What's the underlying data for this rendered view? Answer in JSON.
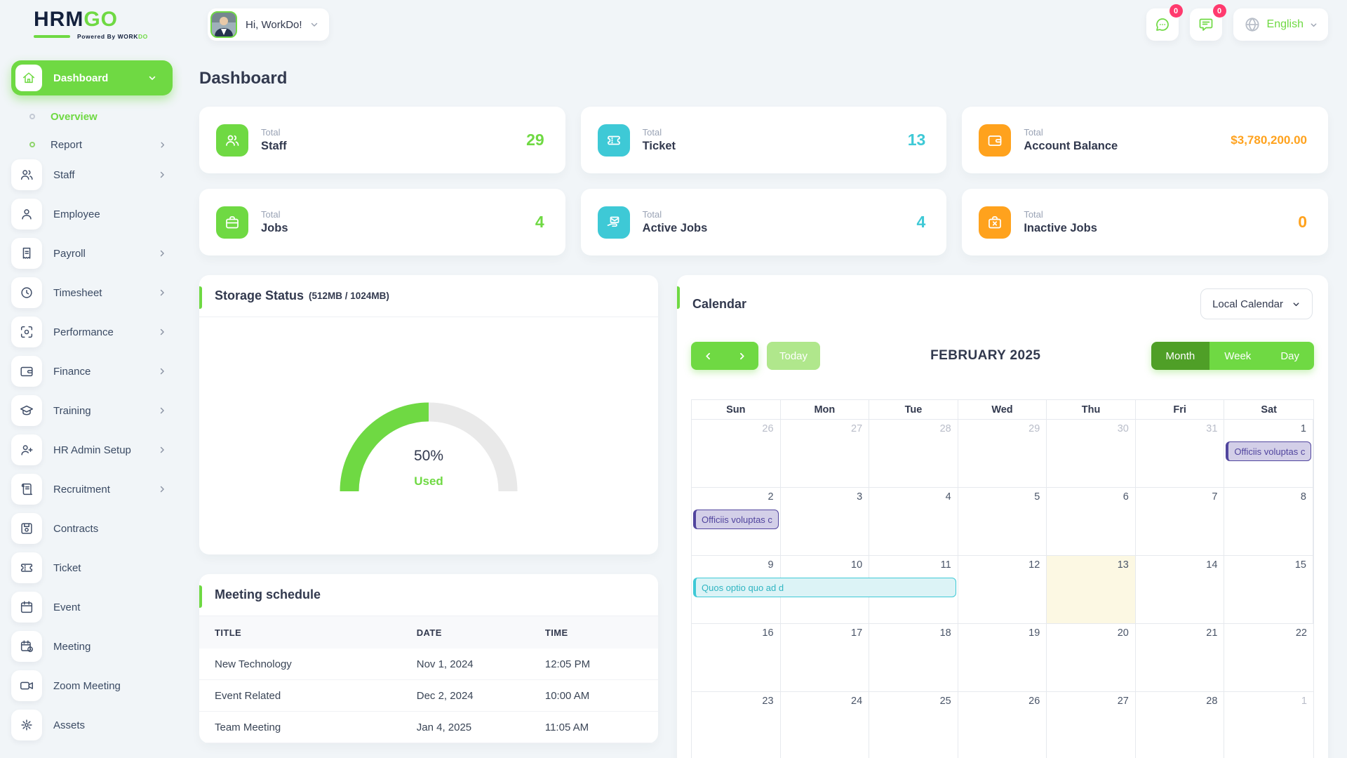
{
  "brand": {
    "hrm": "HRM",
    "go": "GO",
    "powered_prefix": "Powered By ",
    "powered_work": "WORK",
    "powered_do": "DO"
  },
  "header": {
    "user_greeting": "Hi, WorkDo!",
    "messages_badge": "0",
    "notifications_badge": "0",
    "language": "English"
  },
  "sidebar": {
    "items": [
      {
        "label": "Dashboard",
        "icon": "home",
        "type": "active-pill",
        "chevron": "down"
      },
      {
        "label": "Overview",
        "type": "sub",
        "active": true
      },
      {
        "label": "Report",
        "type": "sub",
        "green_dot": true,
        "chevron": "right"
      },
      {
        "label": "Staff",
        "icon": "users",
        "chevron": "right"
      },
      {
        "label": "Employee",
        "icon": "user"
      },
      {
        "label": "Payroll",
        "icon": "receipt",
        "chevron": "right"
      },
      {
        "label": "Timesheet",
        "icon": "clock",
        "chevron": "right"
      },
      {
        "label": "Performance",
        "icon": "target",
        "chevron": "right"
      },
      {
        "label": "Finance",
        "icon": "wallet",
        "chevron": "right"
      },
      {
        "label": "Training",
        "icon": "graduation-cap",
        "chevron": "right"
      },
      {
        "label": "HR Admin Setup",
        "icon": "user-plus",
        "chevron": "right"
      },
      {
        "label": "Recruitment",
        "icon": "scroll",
        "chevron": "right"
      },
      {
        "label": "Contracts",
        "icon": "save"
      },
      {
        "label": "Ticket",
        "icon": "ticket"
      },
      {
        "label": "Event",
        "icon": "calendar"
      },
      {
        "label": "Meeting",
        "icon": "calendar-clock"
      },
      {
        "label": "Zoom Meeting",
        "icon": "video"
      },
      {
        "label": "Assets",
        "icon": "gear"
      }
    ]
  },
  "page": {
    "title": "Dashboard"
  },
  "stats": [
    {
      "top": "Total",
      "label": "Staff",
      "value": "29",
      "color": "#6fd943",
      "icon": "users"
    },
    {
      "top": "Total",
      "label": "Ticket",
      "value": "13",
      "color": "#3ec9d6",
      "icon": "ticket"
    },
    {
      "top": "Total",
      "label": "Account Balance",
      "value": "$3,780,200.00",
      "color": "#ffa21d",
      "icon": "wallet"
    },
    {
      "top": "Total",
      "label": "Jobs",
      "value": "4",
      "color": "#6fd943",
      "icon": "briefcase"
    },
    {
      "top": "Total",
      "label": "Active Jobs",
      "value": "4",
      "color": "#3ec9d6",
      "icon": "hand-envelope"
    },
    {
      "top": "Total",
      "label": "Inactive Jobs",
      "value": "0",
      "color": "#ffa21d",
      "icon": "briefcase-x"
    }
  ],
  "storage": {
    "title": "Storage Status",
    "subtitle": "(512MB / 1024MB)",
    "percent_label": "50%",
    "used_label": "Used",
    "chart_data": {
      "type": "gauge",
      "percent_used": 50,
      "used_mb": 512,
      "total_mb": 1024,
      "used_color": "#6fd943",
      "free_color": "#e9e9e9"
    }
  },
  "calendar": {
    "title": "Calendar",
    "source_dropdown": "Local Calendar",
    "today_label": "Today",
    "month_title": "FEBRUARY 2025",
    "views": [
      "Month",
      "Week",
      "Day"
    ],
    "active_view": "Month",
    "day_headers": [
      "Sun",
      "Mon",
      "Tue",
      "Wed",
      "Thu",
      "Fri",
      "Sat"
    ],
    "weeks": [
      {
        "days": [
          {
            "n": "26",
            "muted": true
          },
          {
            "n": "27",
            "muted": true
          },
          {
            "n": "28",
            "muted": true
          },
          {
            "n": "29",
            "muted": true
          },
          {
            "n": "30",
            "muted": true
          },
          {
            "n": "31",
            "muted": true
          },
          {
            "n": "1"
          }
        ],
        "events": [
          {
            "label": "Officiis voluptas c",
            "color": "purple",
            "col": 6,
            "span": 1
          }
        ]
      },
      {
        "days": [
          {
            "n": "2"
          },
          {
            "n": "3"
          },
          {
            "n": "4"
          },
          {
            "n": "5"
          },
          {
            "n": "6"
          },
          {
            "n": "7"
          },
          {
            "n": "8"
          }
        ],
        "events": [
          {
            "label": "Officiis voluptas c",
            "color": "purple",
            "col": 0,
            "span": 1
          }
        ]
      },
      {
        "days": [
          {
            "n": "9"
          },
          {
            "n": "10"
          },
          {
            "n": "11"
          },
          {
            "n": "12"
          },
          {
            "n": "13",
            "today": true
          },
          {
            "n": "14"
          },
          {
            "n": "15"
          }
        ],
        "events": [
          {
            "label": "Quos optio quo ad d",
            "color": "cyan",
            "col": 0,
            "span": 3
          }
        ]
      },
      {
        "days": [
          {
            "n": "16"
          },
          {
            "n": "17"
          },
          {
            "n": "18"
          },
          {
            "n": "19"
          },
          {
            "n": "20"
          },
          {
            "n": "21"
          },
          {
            "n": "22"
          }
        ],
        "events": []
      },
      {
        "days": [
          {
            "n": "23"
          },
          {
            "n": "24"
          },
          {
            "n": "25"
          },
          {
            "n": "26"
          },
          {
            "n": "27"
          },
          {
            "n": "28"
          },
          {
            "n": "1",
            "muted": true
          }
        ],
        "events": []
      }
    ]
  },
  "meetings": {
    "title": "Meeting schedule",
    "columns": [
      "TITLE",
      "DATE",
      "TIME"
    ],
    "rows": [
      [
        "New Technology",
        "Nov 1, 2024",
        "12:05 PM"
      ],
      [
        "Event Related",
        "Dec 2, 2024",
        "10:00 AM"
      ],
      [
        "Team Meeting",
        "Jan 4, 2025",
        "11:05 AM"
      ]
    ]
  },
  "theme": {
    "primary_green": "#6fd943",
    "active_green": "#4f9f27",
    "info_cyan": "#3ec9d6",
    "warning_orange": "#ffa21d",
    "danger_pink": "#ff3a6e",
    "text_dark": "#32394e",
    "today_bg": "#fcf8e3",
    "event_purple": "#51459e"
  }
}
